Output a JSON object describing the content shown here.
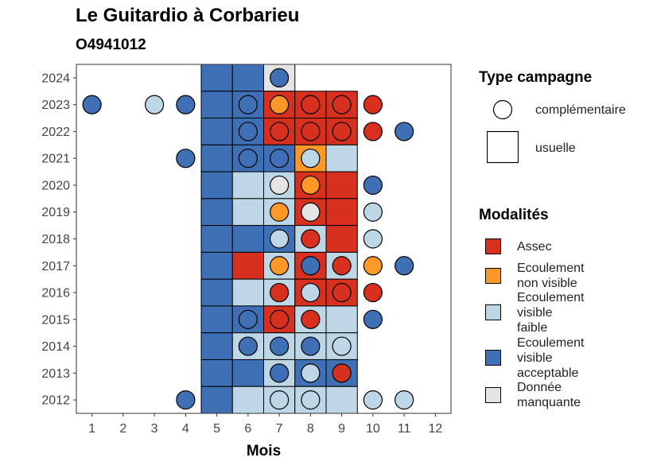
{
  "header": {
    "title": "Le Guitardio à Corbarieu",
    "subtitle": "O4941012"
  },
  "colors": {
    "Assec": "#d7301f",
    "Ecoulement non visible": "#fe9929",
    "Ecoulement visible faible": "#bdd7e7",
    "Ecoulement visible acceptable": "#3f6fb5",
    "Donnée manquante": "#e4e4e4"
  },
  "legend": {
    "campaign_title": "Type campagne",
    "campaign_items": [
      {
        "label": "complémentaire",
        "shape": "circle"
      },
      {
        "label": "usuelle",
        "shape": "square"
      }
    ],
    "modality_title": "Modalités",
    "modality_items": [
      {
        "lines": [
          "Assec"
        ],
        "key": "Assec"
      },
      {
        "lines": [
          "Ecoulement",
          "non visible"
        ],
        "key": "Ecoulement non visible"
      },
      {
        "lines": [
          "Ecoulement",
          "visible",
          "faible"
        ],
        "key": "Ecoulement visible faible"
      },
      {
        "lines": [
          "Ecoulement",
          "visible",
          "acceptable"
        ],
        "key": "Ecoulement visible acceptable"
      },
      {
        "lines": [
          "Donnée",
          "manquante"
        ],
        "key": "Donnée manquante"
      }
    ]
  },
  "chart_data": {
    "type": "heatmap",
    "xlabel": "Mois",
    "ylabel": "",
    "x_ticks": [
      1,
      2,
      3,
      4,
      5,
      6,
      7,
      8,
      9,
      10,
      11,
      12
    ],
    "y_ticks": [
      2012,
      2013,
      2014,
      2015,
      2016,
      2017,
      2018,
      2019,
      2020,
      2021,
      2022,
      2023,
      2024
    ],
    "xlim": [
      0.5,
      12.5
    ],
    "ylim": [
      2011.5,
      2024.5
    ],
    "usuelle": [
      {
        "year": 2024,
        "month": 5,
        "modalite": "Ecoulement visible acceptable"
      },
      {
        "year": 2024,
        "month": 6,
        "modalite": "Ecoulement visible acceptable"
      },
      {
        "year": 2024,
        "month": 7,
        "modalite": "Donnée manquante"
      },
      {
        "year": 2023,
        "month": 5,
        "modalite": "Ecoulement visible acceptable"
      },
      {
        "year": 2023,
        "month": 6,
        "modalite": "Ecoulement visible acceptable"
      },
      {
        "year": 2023,
        "month": 7,
        "modalite": "Assec"
      },
      {
        "year": 2023,
        "month": 8,
        "modalite": "Assec"
      },
      {
        "year": 2023,
        "month": 9,
        "modalite": "Assec"
      },
      {
        "year": 2022,
        "month": 5,
        "modalite": "Ecoulement visible acceptable"
      },
      {
        "year": 2022,
        "month": 6,
        "modalite": "Ecoulement visible acceptable"
      },
      {
        "year": 2022,
        "month": 7,
        "modalite": "Assec"
      },
      {
        "year": 2022,
        "month": 8,
        "modalite": "Assec"
      },
      {
        "year": 2022,
        "month": 9,
        "modalite": "Assec"
      },
      {
        "year": 2021,
        "month": 5,
        "modalite": "Ecoulement visible acceptable"
      },
      {
        "year": 2021,
        "month": 6,
        "modalite": "Ecoulement visible acceptable"
      },
      {
        "year": 2021,
        "month": 7,
        "modalite": "Ecoulement visible acceptable"
      },
      {
        "year": 2021,
        "month": 8,
        "modalite": "Ecoulement non visible"
      },
      {
        "year": 2021,
        "month": 9,
        "modalite": "Ecoulement visible faible"
      },
      {
        "year": 2020,
        "month": 5,
        "modalite": "Ecoulement visible acceptable"
      },
      {
        "year": 2020,
        "month": 6,
        "modalite": "Ecoulement visible faible"
      },
      {
        "year": 2020,
        "month": 7,
        "modalite": "Ecoulement visible faible"
      },
      {
        "year": 2020,
        "month": 8,
        "modalite": "Assec"
      },
      {
        "year": 2020,
        "month": 9,
        "modalite": "Assec"
      },
      {
        "year": 2019,
        "month": 5,
        "modalite": "Ecoulement visible acceptable"
      },
      {
        "year": 2019,
        "month": 6,
        "modalite": "Ecoulement visible faible"
      },
      {
        "year": 2019,
        "month": 7,
        "modalite": "Ecoulement visible faible"
      },
      {
        "year": 2019,
        "month": 8,
        "modalite": "Assec"
      },
      {
        "year": 2019,
        "month": 9,
        "modalite": "Assec"
      },
      {
        "year": 2018,
        "month": 5,
        "modalite": "Ecoulement visible acceptable"
      },
      {
        "year": 2018,
        "month": 6,
        "modalite": "Ecoulement visible acceptable"
      },
      {
        "year": 2018,
        "month": 7,
        "modalite": "Ecoulement visible acceptable"
      },
      {
        "year": 2018,
        "month": 8,
        "modalite": "Ecoulement visible faible"
      },
      {
        "year": 2018,
        "month": 9,
        "modalite": "Assec"
      },
      {
        "year": 2017,
        "month": 5,
        "modalite": "Ecoulement visible acceptable"
      },
      {
        "year": 2017,
        "month": 6,
        "modalite": "Assec"
      },
      {
        "year": 2017,
        "month": 7,
        "modalite": "Ecoulement visible faible"
      },
      {
        "year": 2017,
        "month": 8,
        "modalite": "Assec"
      },
      {
        "year": 2017,
        "month": 9,
        "modalite": "Ecoulement visible faible"
      },
      {
        "year": 2016,
        "month": 5,
        "modalite": "Ecoulement visible acceptable"
      },
      {
        "year": 2016,
        "month": 6,
        "modalite": "Ecoulement visible faible"
      },
      {
        "year": 2016,
        "month": 7,
        "modalite": "Ecoulement visible faible"
      },
      {
        "year": 2016,
        "month": 8,
        "modalite": "Assec"
      },
      {
        "year": 2016,
        "month": 9,
        "modalite": "Assec"
      },
      {
        "year": 2015,
        "month": 5,
        "modalite": "Ecoulement visible acceptable"
      },
      {
        "year": 2015,
        "month": 6,
        "modalite": "Ecoulement visible acceptable"
      },
      {
        "year": 2015,
        "month": 7,
        "modalite": "Assec"
      },
      {
        "year": 2015,
        "month": 8,
        "modalite": "Ecoulement visible faible"
      },
      {
        "year": 2015,
        "month": 9,
        "modalite": "Ecoulement visible faible"
      },
      {
        "year": 2014,
        "month": 5,
        "modalite": "Ecoulement visible acceptable"
      },
      {
        "year": 2014,
        "month": 6,
        "modalite": "Ecoulement visible faible"
      },
      {
        "year": 2014,
        "month": 7,
        "modalite": "Ecoulement visible faible"
      },
      {
        "year": 2014,
        "month": 8,
        "modalite": "Ecoulement visible faible"
      },
      {
        "year": 2014,
        "month": 9,
        "modalite": "Ecoulement visible faible"
      },
      {
        "year": 2013,
        "month": 5,
        "modalite": "Ecoulement visible acceptable"
      },
      {
        "year": 2013,
        "month": 6,
        "modalite": "Ecoulement visible acceptable"
      },
      {
        "year": 2013,
        "month": 7,
        "modalite": "Ecoulement visible faible"
      },
      {
        "year": 2013,
        "month": 8,
        "modalite": "Ecoulement visible acceptable"
      },
      {
        "year": 2013,
        "month": 9,
        "modalite": "Ecoulement visible acceptable"
      },
      {
        "year": 2012,
        "month": 5,
        "modalite": "Ecoulement visible acceptable"
      },
      {
        "year": 2012,
        "month": 6,
        "modalite": "Ecoulement visible faible"
      },
      {
        "year": 2012,
        "month": 7,
        "modalite": "Ecoulement visible faible"
      },
      {
        "year": 2012,
        "month": 8,
        "modalite": "Ecoulement visible faible"
      },
      {
        "year": 2012,
        "month": 9,
        "modalite": "Ecoulement visible faible"
      }
    ],
    "complementaire": [
      {
        "year": 2024,
        "month": 7,
        "modalite": "Ecoulement visible acceptable"
      },
      {
        "year": 2023,
        "month": 1,
        "modalite": "Ecoulement visible acceptable"
      },
      {
        "year": 2023,
        "month": 3,
        "modalite": "Ecoulement visible faible"
      },
      {
        "year": 2023,
        "month": 4,
        "modalite": "Ecoulement visible acceptable"
      },
      {
        "year": 2023,
        "month": 6,
        "modalite": "Ecoulement visible acceptable"
      },
      {
        "year": 2023,
        "month": 7,
        "modalite": "Ecoulement non visible"
      },
      {
        "year": 2023,
        "month": 8,
        "modalite": "Assec"
      },
      {
        "year": 2023,
        "month": 9,
        "modalite": "Assec"
      },
      {
        "year": 2023,
        "month": 10,
        "modalite": "Assec"
      },
      {
        "year": 2022,
        "month": 6,
        "modalite": "Ecoulement visible acceptable"
      },
      {
        "year": 2022,
        "month": 7,
        "modalite": "Assec"
      },
      {
        "year": 2022,
        "month": 8,
        "modalite": "Assec"
      },
      {
        "year": 2022,
        "month": 9,
        "modalite": "Assec"
      },
      {
        "year": 2022,
        "month": 10,
        "modalite": "Assec"
      },
      {
        "year": 2022,
        "month": 11,
        "modalite": "Ecoulement visible acceptable"
      },
      {
        "year": 2021,
        "month": 4,
        "modalite": "Ecoulement visible acceptable"
      },
      {
        "year": 2021,
        "month": 6,
        "modalite": "Ecoulement visible acceptable"
      },
      {
        "year": 2021,
        "month": 7,
        "modalite": "Ecoulement visible acceptable"
      },
      {
        "year": 2021,
        "month": 8,
        "modalite": "Ecoulement visible faible"
      },
      {
        "year": 2020,
        "month": 7,
        "modalite": "Donnée manquante"
      },
      {
        "year": 2020,
        "month": 8,
        "modalite": "Ecoulement non visible"
      },
      {
        "year": 2020,
        "month": 10,
        "modalite": "Ecoulement visible acceptable"
      },
      {
        "year": 2019,
        "month": 7,
        "modalite": "Ecoulement non visible"
      },
      {
        "year": 2019,
        "month": 8,
        "modalite": "Donnée manquante"
      },
      {
        "year": 2019,
        "month": 10,
        "modalite": "Ecoulement visible faible"
      },
      {
        "year": 2018,
        "month": 7,
        "modalite": "Ecoulement visible faible"
      },
      {
        "year": 2018,
        "month": 8,
        "modalite": "Assec"
      },
      {
        "year": 2018,
        "month": 10,
        "modalite": "Ecoulement visible faible"
      },
      {
        "year": 2017,
        "month": 7,
        "modalite": "Ecoulement non visible"
      },
      {
        "year": 2017,
        "month": 8,
        "modalite": "Ecoulement visible acceptable"
      },
      {
        "year": 2017,
        "month": 9,
        "modalite": "Assec"
      },
      {
        "year": 2017,
        "month": 10,
        "modalite": "Ecoulement non visible"
      },
      {
        "year": 2017,
        "month": 11,
        "modalite": "Ecoulement visible acceptable"
      },
      {
        "year": 2016,
        "month": 7,
        "modalite": "Assec"
      },
      {
        "year": 2016,
        "month": 8,
        "modalite": "Ecoulement visible faible"
      },
      {
        "year": 2016,
        "month": 9,
        "modalite": "Assec"
      },
      {
        "year": 2016,
        "month": 10,
        "modalite": "Assec"
      },
      {
        "year": 2015,
        "month": 6,
        "modalite": "Ecoulement visible acceptable"
      },
      {
        "year": 2015,
        "month": 7,
        "modalite": "Assec"
      },
      {
        "year": 2015,
        "month": 8,
        "modalite": "Assec"
      },
      {
        "year": 2015,
        "month": 10,
        "modalite": "Ecoulement visible acceptable"
      },
      {
        "year": 2014,
        "month": 6,
        "modalite": "Ecoulement visible acceptable"
      },
      {
        "year": 2014,
        "month": 7,
        "modalite": "Ecoulement visible acceptable"
      },
      {
        "year": 2014,
        "month": 8,
        "modalite": "Ecoulement visible acceptable"
      },
      {
        "year": 2014,
        "month": 9,
        "modalite": "Ecoulement visible faible"
      },
      {
        "year": 2013,
        "month": 7,
        "modalite": "Ecoulement visible acceptable"
      },
      {
        "year": 2013,
        "month": 8,
        "modalite": "Ecoulement visible faible"
      },
      {
        "year": 2013,
        "month": 9,
        "modalite": "Assec"
      },
      {
        "year": 2012,
        "month": 4,
        "modalite": "Ecoulement visible acceptable"
      },
      {
        "year": 2012,
        "month": 7,
        "modalite": "Ecoulement visible faible"
      },
      {
        "year": 2012,
        "month": 8,
        "modalite": "Ecoulement visible faible"
      },
      {
        "year": 2012,
        "month": 10,
        "modalite": "Ecoulement visible faible"
      },
      {
        "year": 2012,
        "month": 11,
        "modalite": "Ecoulement visible faible"
      }
    ]
  }
}
